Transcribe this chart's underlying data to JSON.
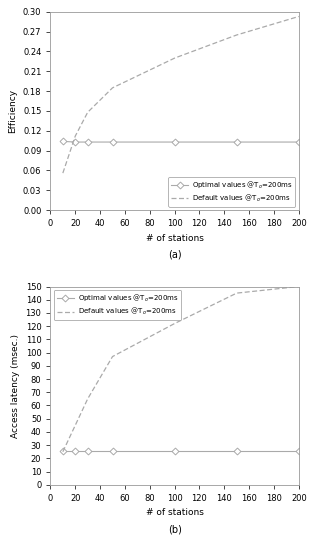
{
  "stations_eff": [
    10,
    20,
    30,
    50,
    100,
    150,
    200
  ],
  "efficiency_optimal": [
    0.104,
    0.103,
    0.103,
    0.103,
    0.103,
    0.103,
    0.103
  ],
  "efficiency_default": [
    0.056,
    0.112,
    0.148,
    0.185,
    0.23,
    0.265,
    0.293
  ],
  "stations_lat": [
    10,
    20,
    30,
    50,
    100,
    150,
    200
  ],
  "latency_optimal": [
    25.5,
    25.5,
    25.5,
    25.5,
    25.5,
    25.5,
    25.5
  ],
  "latency_default": [
    25,
    45,
    65,
    97,
    122,
    145,
    150
  ],
  "efficiency_ylim": [
    0,
    0.3
  ],
  "efficiency_yticks": [
    0,
    0.03,
    0.06,
    0.09,
    0.12,
    0.15,
    0.18,
    0.21,
    0.24,
    0.27,
    0.3
  ],
  "latency_ylim": [
    0,
    150
  ],
  "latency_yticks": [
    0,
    10,
    20,
    30,
    40,
    50,
    60,
    70,
    80,
    90,
    100,
    110,
    120,
    130,
    140,
    150
  ],
  "xlim": [
    0,
    200
  ],
  "xticks": [
    0,
    20,
    40,
    60,
    80,
    100,
    120,
    140,
    160,
    180,
    200
  ],
  "legend_optimal": "Optimal values @T$_o$=200ms",
  "legend_default": "Default values @T$_o$=200ms",
  "xlabel": "# of stations",
  "ylabel_top": "Efficiency",
  "ylabel_bottom": "Access latency (msec.)",
  "label_a": "(a)",
  "label_b": "(b)",
  "line_color": "#aaaaaa",
  "marker_size": 3.5,
  "background_color": "#ffffff",
  "fontsize": 6.5,
  "tick_fontsize": 6
}
